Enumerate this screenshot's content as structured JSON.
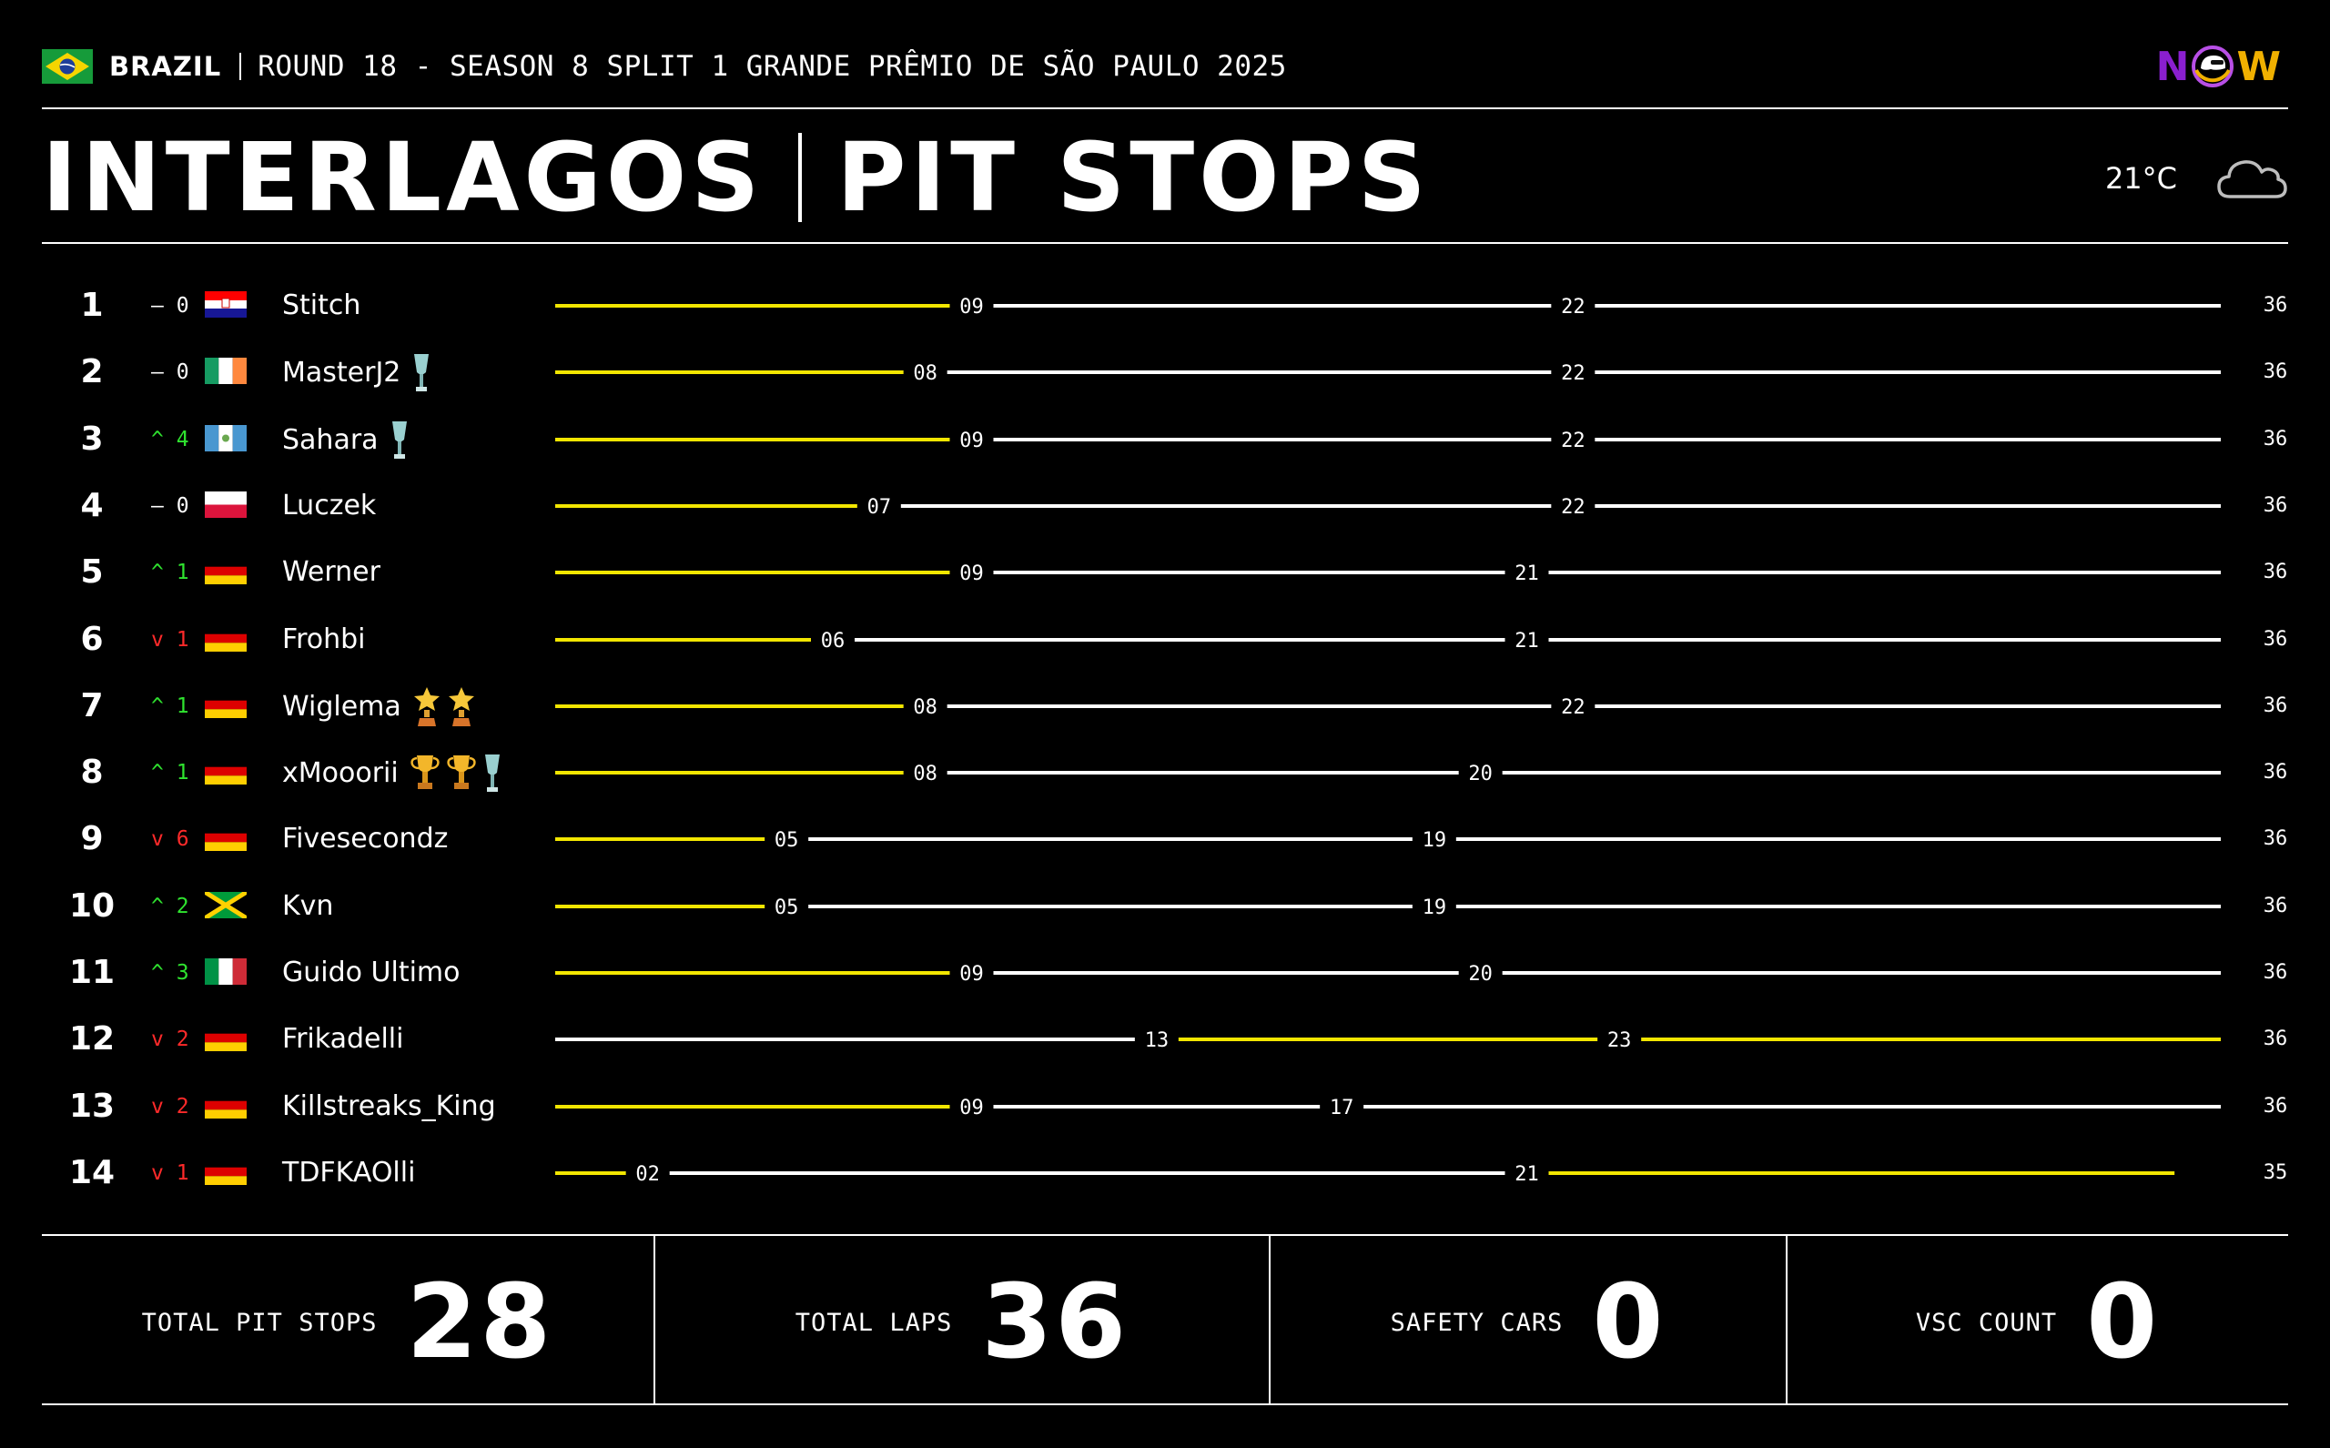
{
  "header": {
    "country": "BRAZIL",
    "round_info": "ROUND 18 - SEASON 8 SPLIT 1 GRANDE PRÊMIO DE SÃO PAULO 2025",
    "track": "INTERLAGOS",
    "subtitle": "PIT STOPS",
    "temperature": "21°C",
    "weather_icon": "cloud-icon",
    "logo_text": [
      "N",
      "W"
    ]
  },
  "colors": {
    "stint_yellow": "#f2e600",
    "stint_white": "#ffffff",
    "up": "#2fe32f",
    "down": "#ff2a2a"
  },
  "total_laps": 36,
  "drivers": [
    {
      "pos": "1",
      "dir": "same",
      "chg": "0",
      "flag": "croatia",
      "name": "Stitch",
      "trophies": [],
      "stints": [
        {
          "end": 9,
          "c": "y"
        },
        {
          "end": 22,
          "c": "w"
        },
        {
          "end": 36,
          "c": "w"
        }
      ],
      "labels": [
        "09",
        "22",
        "36"
      ]
    },
    {
      "pos": "2",
      "dir": "same",
      "chg": "0",
      "flag": "ireland",
      "name": "MasterJ2",
      "trophies": [
        "silver"
      ],
      "stints": [
        {
          "end": 8,
          "c": "y"
        },
        {
          "end": 22,
          "c": "w"
        },
        {
          "end": 36,
          "c": "w"
        }
      ],
      "labels": [
        "08",
        "22",
        "36"
      ]
    },
    {
      "pos": "3",
      "dir": "up",
      "chg": "4",
      "flag": "guatemala",
      "name": "Sahara",
      "trophies": [
        "silver"
      ],
      "stints": [
        {
          "end": 9,
          "c": "y"
        },
        {
          "end": 22,
          "c": "w"
        },
        {
          "end": 36,
          "c": "w"
        }
      ],
      "labels": [
        "09",
        "22",
        "36"
      ]
    },
    {
      "pos": "4",
      "dir": "same",
      "chg": "0",
      "flag": "poland",
      "name": "Luczek",
      "trophies": [],
      "stints": [
        {
          "end": 7,
          "c": "y"
        },
        {
          "end": 22,
          "c": "w"
        },
        {
          "end": 36,
          "c": "w"
        }
      ],
      "labels": [
        "07",
        "22",
        "36"
      ]
    },
    {
      "pos": "5",
      "dir": "up",
      "chg": "1",
      "flag": "germany",
      "name": "Werner",
      "trophies": [],
      "stints": [
        {
          "end": 9,
          "c": "y"
        },
        {
          "end": 21,
          "c": "w"
        },
        {
          "end": 36,
          "c": "w"
        }
      ],
      "labels": [
        "09",
        "21",
        "36"
      ]
    },
    {
      "pos": "6",
      "dir": "down",
      "chg": "1",
      "flag": "germany",
      "name": "Frohbi",
      "trophies": [],
      "stints": [
        {
          "end": 6,
          "c": "y"
        },
        {
          "end": 21,
          "c": "w"
        },
        {
          "end": 36,
          "c": "w"
        }
      ],
      "labels": [
        "06",
        "21",
        "36"
      ]
    },
    {
      "pos": "7",
      "dir": "up",
      "chg": "1",
      "flag": "germany",
      "name": "Wiglema",
      "trophies": [
        "star",
        "star"
      ],
      "stints": [
        {
          "end": 8,
          "c": "y"
        },
        {
          "end": 22,
          "c": "w"
        },
        {
          "end": 36,
          "c": "w"
        }
      ],
      "labels": [
        "08",
        "22",
        "36"
      ]
    },
    {
      "pos": "8",
      "dir": "up",
      "chg": "1",
      "flag": "germany",
      "name": "xMooorii",
      "trophies": [
        "gold",
        "gold",
        "silver"
      ],
      "stints": [
        {
          "end": 8,
          "c": "y"
        },
        {
          "end": 20,
          "c": "w"
        },
        {
          "end": 36,
          "c": "w"
        }
      ],
      "labels": [
        "08",
        "20",
        "36"
      ]
    },
    {
      "pos": "9",
      "dir": "down",
      "chg": "6",
      "flag": "germany",
      "name": "Fivesecondz",
      "trophies": [],
      "stints": [
        {
          "end": 5,
          "c": "y"
        },
        {
          "end": 19,
          "c": "w"
        },
        {
          "end": 36,
          "c": "w"
        }
      ],
      "labels": [
        "05",
        "19",
        "36"
      ]
    },
    {
      "pos": "10",
      "dir": "up",
      "chg": "2",
      "flag": "jamaica",
      "name": "Kvn",
      "trophies": [],
      "stints": [
        {
          "end": 5,
          "c": "y"
        },
        {
          "end": 19,
          "c": "w"
        },
        {
          "end": 36,
          "c": "w"
        }
      ],
      "labels": [
        "05",
        "19",
        "36"
      ]
    },
    {
      "pos": "11",
      "dir": "up",
      "chg": "3",
      "flag": "italy",
      "name": "Guido Ultimo",
      "trophies": [],
      "stints": [
        {
          "end": 9,
          "c": "y"
        },
        {
          "end": 20,
          "c": "w"
        },
        {
          "end": 36,
          "c": "w"
        }
      ],
      "labels": [
        "09",
        "20",
        "36"
      ]
    },
    {
      "pos": "12",
      "dir": "down",
      "chg": "2",
      "flag": "germany",
      "name": "Frikadelli",
      "trophies": [],
      "stints": [
        {
          "end": 13,
          "c": "w"
        },
        {
          "end": 23,
          "c": "y"
        },
        {
          "end": 36,
          "c": "y"
        }
      ],
      "labels": [
        "13",
        "23",
        "36"
      ]
    },
    {
      "pos": "13",
      "dir": "down",
      "chg": "2",
      "flag": "germany",
      "name": "Killstreaks_King",
      "trophies": [],
      "stints": [
        {
          "end": 9,
          "c": "y"
        },
        {
          "end": 17,
          "c": "w"
        },
        {
          "end": 36,
          "c": "w"
        }
      ],
      "labels": [
        "09",
        "17",
        "36"
      ]
    },
    {
      "pos": "14",
      "dir": "down",
      "chg": "1",
      "flag": "germany",
      "name": "TDFKAOlli",
      "trophies": [],
      "stints": [
        {
          "end": 2,
          "c": "y"
        },
        {
          "end": 21,
          "c": "w"
        },
        {
          "end": 35,
          "c": "y"
        }
      ],
      "labels": [
        "02",
        "21",
        "35"
      ]
    }
  ],
  "stats": [
    {
      "label": "TOTAL PIT STOPS",
      "value": "28"
    },
    {
      "label": "TOTAL LAPS",
      "value": "36"
    },
    {
      "label": "SAFETY CARS",
      "value": "0"
    },
    {
      "label": "VSC COUNT",
      "value": "0"
    }
  ]
}
